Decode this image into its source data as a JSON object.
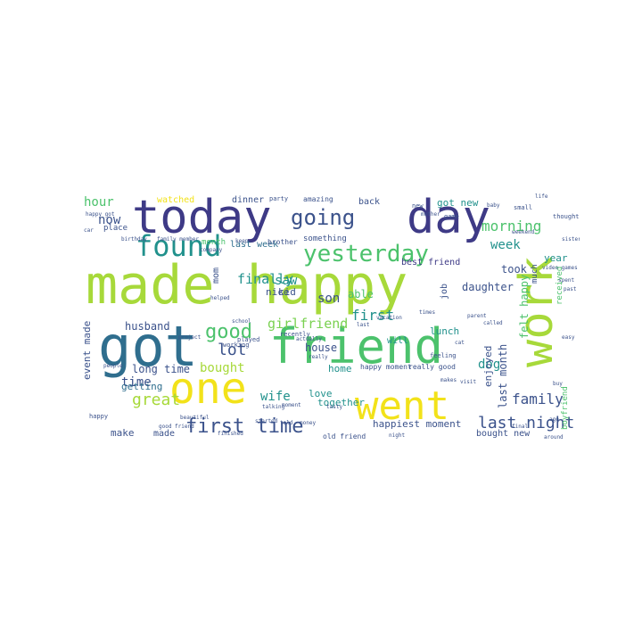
{
  "palette": {
    "lime": "#a7d93a",
    "yellow": "#f2e21a",
    "green": "#4cc26c",
    "teal": "#21918c",
    "blue": "#3b528b",
    "indigo": "#3e3a86",
    "purple": "#482173",
    "lightgreen": "#7ad151",
    "steel": "#2f6e8e"
  },
  "words": {
    "made_happy": "made happy",
    "friend": "friend",
    "got": "got",
    "today": "today",
    "day": "day",
    "work": "work",
    "one": "one",
    "went": "went",
    "found": "found",
    "yesterday": "yesterday",
    "going": "going",
    "first_time": "first time",
    "good": "good",
    "last_night": "last night",
    "girlfriend": "girlfriend",
    "great": "great",
    "family": "family",
    "first": "first",
    "lot": "lot",
    "morning": "morning",
    "week": "week",
    "finally": "finally",
    "bought": "bought",
    "saw": "saw",
    "son": "son",
    "time": "time",
    "now": "now",
    "hour": "hour",
    "dog": "dog",
    "wife": "wife",
    "able": "able",
    "took": "took",
    "daughter": "daughter",
    "husband": "husband",
    "got_new": "got new",
    "last_week": "last week",
    "best_friend": "best friend",
    "long_time": "long time",
    "happiest_moment": "happiest moment",
    "last_month": "last month",
    "felt_happy": "felt happy",
    "enjoyed": "enjoyed",
    "house": "house",
    "together": "together",
    "home": "home",
    "lunch": "lunch",
    "nice": "nice",
    "kid": "kid",
    "love": "love",
    "event_made": "event made",
    "getting": "getting",
    "make": "make",
    "made": "made",
    "year": "year",
    "watched": "watched",
    "dinner": "dinner",
    "back": "back",
    "mom": "mom",
    "will": "will",
    "bought_new": "bought new",
    "job": "job",
    "month": "month",
    "something": "something",
    "brother": "brother",
    "place": "place",
    "boyfriend": "boyfriend",
    "received": "received",
    "much": "much",
    "friends": "friends",
    "happy_moment": "happy moment",
    "really_good": "really good",
    "old_friend": "old friend",
    "amazing": "amazing",
    "party": "party",
    "recently": "recently",
    "working": "working",
    "played": "played",
    "happy": "happy",
    "feeling": "feeling",
    "new": "new",
    "game": "game",
    "small": "small",
    "happy_got": "happy got",
    "family_member": "family member",
    "thought": "thought",
    "beautiful": "beautiful",
    "sister": "sister",
    "moment": "moment",
    "birthday": "birthday",
    "final": "final",
    "video_games": "video games",
    "people": "people",
    "started": "started",
    "around": "around",
    "life": "life",
    "weekend": "weekend",
    "called": "called",
    "school": "school",
    "last": "last",
    "talking": "talking",
    "project": "project",
    "money": "money",
    "company": "company",
    "car": "car",
    "spent": "spent",
    "baby": "baby",
    "actually": "actually",
    "cat": "cat",
    "told": "told",
    "vacation": "vacation",
    "finished": "finished",
    "really": "really",
    "helped": "helped",
    "mother": "mother",
    "parent": "parent",
    "visit": "visit",
    "tasty": "tasty",
    "good_friend": "good friend",
    "makes": "makes",
    "times": "times",
    "buy": "buy",
    "ago": "ago",
    "easy": "easy",
    "past": "past",
    "night": "night",
    "keep": "keep"
  }
}
